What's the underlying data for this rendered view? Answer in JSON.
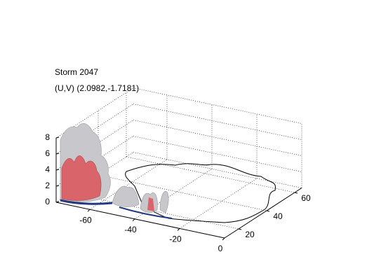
{
  "chart_data": {
    "type": "isosurface3d",
    "title": "Storm 2047",
    "subtitle": "(U,V) (2.0982,-1.7181)",
    "xlim": [
      -75,
      0
    ],
    "xticks": [
      -60,
      -40,
      -20,
      0
    ],
    "ylim": [
      10,
      65
    ],
    "yticks": [
      20,
      40,
      60
    ],
    "zlim": [
      0,
      8
    ],
    "zticks": [
      0,
      2,
      4,
      6,
      8
    ],
    "grid": true
  }
}
